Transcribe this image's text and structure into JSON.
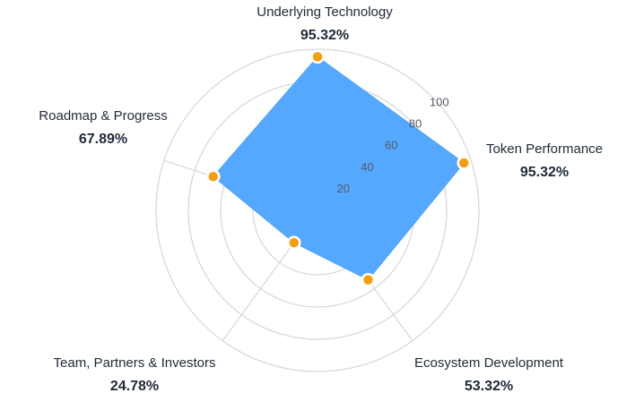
{
  "chart_data": {
    "type": "radar",
    "title": "",
    "categories": [
      "Underlying Technology",
      "Token Performance",
      "Ecosystem Development",
      "Team, Partners & Investors",
      "Roadmap & Progress"
    ],
    "values": [
      95.32,
      95.32,
      53.32,
      24.78,
      67.89
    ],
    "value_labels": [
      "95.32%",
      "95.32%",
      "53.32%",
      "24.78%",
      "67.89%"
    ],
    "rlim": [
      0,
      100
    ],
    "ticks": [
      20,
      40,
      60,
      80,
      100
    ],
    "grid": true,
    "legend": "none"
  },
  "colors": {
    "fill": "#4ba3ff",
    "marker": "#f59e0b",
    "marker_stroke": "#ffffff",
    "grid": "#d9d9d9"
  }
}
